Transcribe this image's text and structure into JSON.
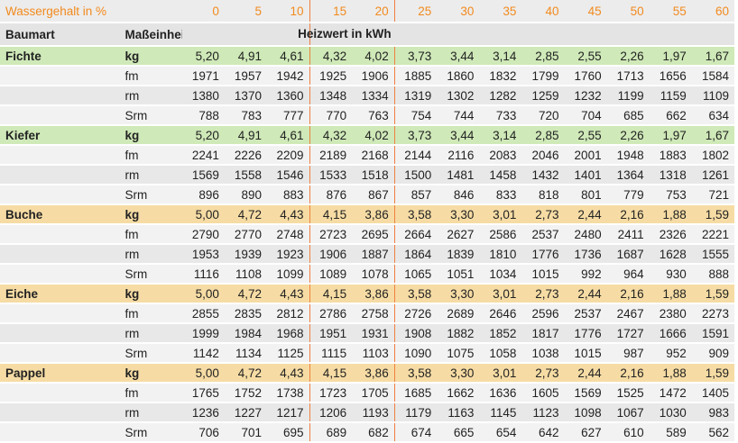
{
  "header": {
    "water_label": "Wassergehalt in %",
    "water_values": [
      "0",
      "5",
      "10",
      "15",
      "20",
      "25",
      "30",
      "35",
      "40",
      "45",
      "50",
      "55",
      "60"
    ],
    "species_label": "Baumart",
    "unit_label": "Maßeinheit",
    "heating_label": "Heizwert in kWh"
  },
  "highlight_columns": [
    "15",
    "20"
  ],
  "colors": {
    "accent_orange": "#f28a1e",
    "kg_green": "#cfe9b8",
    "kg_orange": "#f6dca4",
    "highlight_border": "#f08040"
  },
  "species": [
    {
      "name": "Fichte",
      "kg_color": "green",
      "rows": [
        {
          "unit": "kg",
          "values": [
            "5,20",
            "4,91",
            "4,61",
            "4,32",
            "4,02",
            "3,73",
            "3,44",
            "3,14",
            "2,85",
            "2,55",
            "2,26",
            "1,97",
            "1,67"
          ]
        },
        {
          "unit": "fm",
          "values": [
            "1971",
            "1957",
            "1942",
            "1925",
            "1906",
            "1885",
            "1860",
            "1832",
            "1799",
            "1760",
            "1713",
            "1656",
            "1584"
          ]
        },
        {
          "unit": "rm",
          "values": [
            "1380",
            "1370",
            "1360",
            "1348",
            "1334",
            "1319",
            "1302",
            "1282",
            "1259",
            "1232",
            "1199",
            "1159",
            "1109"
          ]
        },
        {
          "unit": "Srm",
          "values": [
            "788",
            "783",
            "777",
            "770",
            "763",
            "754",
            "744",
            "733",
            "720",
            "704",
            "685",
            "662",
            "634"
          ]
        }
      ]
    },
    {
      "name": "Kiefer",
      "kg_color": "green",
      "rows": [
        {
          "unit": "kg",
          "values": [
            "5,20",
            "4,91",
            "4,61",
            "4,32",
            "4,02",
            "3,73",
            "3,44",
            "3,14",
            "2,85",
            "2,55",
            "2,26",
            "1,97",
            "1,67"
          ]
        },
        {
          "unit": "fm",
          "values": [
            "2241",
            "2226",
            "2209",
            "2189",
            "2168",
            "2144",
            "2116",
            "2083",
            "2046",
            "2001",
            "1948",
            "1883",
            "1802"
          ]
        },
        {
          "unit": "rm",
          "values": [
            "1569",
            "1558",
            "1546",
            "1533",
            "1518",
            "1500",
            "1481",
            "1458",
            "1432",
            "1401",
            "1364",
            "1318",
            "1261"
          ]
        },
        {
          "unit": "Srm",
          "values": [
            "896",
            "890",
            "883",
            "876",
            "867",
            "857",
            "846",
            "833",
            "818",
            "801",
            "779",
            "753",
            "721"
          ]
        }
      ]
    },
    {
      "name": "Buche",
      "kg_color": "orange",
      "rows": [
        {
          "unit": "kg",
          "values": [
            "5,00",
            "4,72",
            "4,43",
            "4,15",
            "3,86",
            "3,58",
            "3,30",
            "3,01",
            "2,73",
            "2,44",
            "2,16",
            "1,88",
            "1,59"
          ]
        },
        {
          "unit": "fm",
          "values": [
            "2790",
            "2770",
            "2748",
            "2723",
            "2695",
            "2664",
            "2627",
            "2586",
            "2537",
            "2480",
            "2411",
            "2326",
            "2221"
          ]
        },
        {
          "unit": "rm",
          "values": [
            "1953",
            "1939",
            "1923",
            "1906",
            "1887",
            "1864",
            "1839",
            "1810",
            "1776",
            "1736",
            "1687",
            "1628",
            "1555"
          ]
        },
        {
          "unit": "Srm",
          "values": [
            "1116",
            "1108",
            "1099",
            "1089",
            "1078",
            "1065",
            "1051",
            "1034",
            "1015",
            "992",
            "964",
            "930",
            "888"
          ]
        }
      ]
    },
    {
      "name": "Eiche",
      "kg_color": "orange",
      "rows": [
        {
          "unit": "kg",
          "values": [
            "5,00",
            "4,72",
            "4,43",
            "4,15",
            "3,86",
            "3,58",
            "3,30",
            "3,01",
            "2,73",
            "2,44",
            "2,16",
            "1,88",
            "1,59"
          ]
        },
        {
          "unit": "fm",
          "values": [
            "2855",
            "2835",
            "2812",
            "2786",
            "2758",
            "2726",
            "2689",
            "2646",
            "2596",
            "2537",
            "2467",
            "2380",
            "2273"
          ]
        },
        {
          "unit": "rm",
          "values": [
            "1999",
            "1984",
            "1968",
            "1951",
            "1931",
            "1908",
            "1882",
            "1852",
            "1817",
            "1776",
            "1727",
            "1666",
            "1591"
          ]
        },
        {
          "unit": "Srm",
          "values": [
            "1142",
            "1134",
            "1125",
            "1115",
            "1103",
            "1090",
            "1075",
            "1058",
            "1038",
            "1015",
            "987",
            "952",
            "909"
          ]
        }
      ]
    },
    {
      "name": "Pappel",
      "kg_color": "orange",
      "rows": [
        {
          "unit": "kg",
          "values": [
            "5,00",
            "4,72",
            "4,43",
            "4,15",
            "3,86",
            "3,58",
            "3,30",
            "3,01",
            "2,73",
            "2,44",
            "2,16",
            "1,88",
            "1,59"
          ]
        },
        {
          "unit": "fm",
          "values": [
            "1765",
            "1752",
            "1738",
            "1723",
            "1705",
            "1685",
            "1662",
            "1636",
            "1605",
            "1569",
            "1525",
            "1472",
            "1405"
          ]
        },
        {
          "unit": "rm",
          "values": [
            "1236",
            "1227",
            "1217",
            "1206",
            "1193",
            "1179",
            "1163",
            "1145",
            "1123",
            "1098",
            "1067",
            "1030",
            "983"
          ]
        },
        {
          "unit": "Srm",
          "values": [
            "706",
            "701",
            "695",
            "689",
            "682",
            "674",
            "665",
            "654",
            "642",
            "627",
            "610",
            "589",
            "562"
          ]
        }
      ]
    }
  ]
}
